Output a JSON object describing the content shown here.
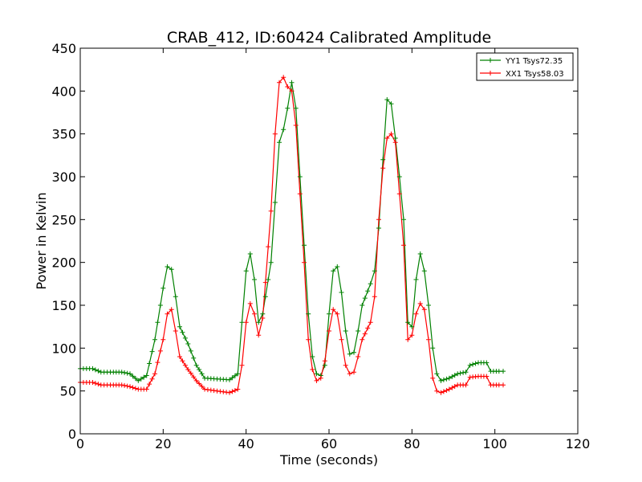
{
  "chart_data": {
    "type": "line",
    "title": "CRAB_412, ID:60424 Calibrated Amplitude",
    "xlabel": "Time (seconds)",
    "ylabel": "Power in Kelvin",
    "xlim": [
      0,
      120
    ],
    "ylim": [
      0,
      450
    ],
    "xticks": [
      0,
      20,
      40,
      60,
      80,
      100,
      120
    ],
    "yticks": [
      0,
      50,
      100,
      150,
      200,
      250,
      300,
      350,
      400,
      450
    ],
    "grid": false,
    "legend_position": "top-right",
    "marker": "+",
    "series": [
      {
        "name": "YY1 Tsys72.35",
        "color": "#008000",
        "points": [
          [
            0,
            76
          ],
          [
            3,
            76
          ],
          [
            5,
            72
          ],
          [
            8,
            72
          ],
          [
            10,
            72
          ],
          [
            12,
            70
          ],
          [
            14,
            62
          ],
          [
            16,
            68
          ],
          [
            18,
            110
          ],
          [
            20,
            170
          ],
          [
            21,
            195
          ],
          [
            22,
            192
          ],
          [
            23,
            160
          ],
          [
            24,
            125
          ],
          [
            26,
            105
          ],
          [
            28,
            80
          ],
          [
            30,
            65
          ],
          [
            33,
            64
          ],
          [
            36,
            63
          ],
          [
            38,
            70
          ],
          [
            39,
            130
          ],
          [
            40,
            190
          ],
          [
            41,
            210
          ],
          [
            42,
            180
          ],
          [
            43,
            130
          ],
          [
            44,
            140
          ],
          [
            46,
            200
          ],
          [
            47,
            270
          ],
          [
            48,
            340
          ],
          [
            49,
            355
          ],
          [
            50,
            380
          ],
          [
            51,
            410
          ],
          [
            52,
            380
          ],
          [
            53,
            300
          ],
          [
            54,
            220
          ],
          [
            55,
            140
          ],
          [
            56,
            90
          ],
          [
            57,
            70
          ],
          [
            58,
            68
          ],
          [
            59,
            80
          ],
          [
            60,
            140
          ],
          [
            61,
            190
          ],
          [
            62,
            195
          ],
          [
            63,
            165
          ],
          [
            64,
            120
          ],
          [
            65,
            93
          ],
          [
            66,
            95
          ],
          [
            67,
            120
          ],
          [
            68,
            150
          ],
          [
            70,
            175
          ],
          [
            71,
            190
          ],
          [
            72,
            240
          ],
          [
            73,
            320
          ],
          [
            74,
            390
          ],
          [
            75,
            385
          ],
          [
            76,
            345
          ],
          [
            77,
            300
          ],
          [
            78,
            250
          ],
          [
            79,
            130
          ],
          [
            80,
            125
          ],
          [
            81,
            180
          ],
          [
            82,
            210
          ],
          [
            83,
            190
          ],
          [
            84,
            150
          ],
          [
            85,
            100
          ],
          [
            86,
            70
          ],
          [
            87,
            62
          ],
          [
            89,
            65
          ],
          [
            91,
            70
          ],
          [
            93,
            72
          ],
          [
            94,
            80
          ],
          [
            96,
            83
          ],
          [
            98,
            83
          ],
          [
            99,
            73
          ],
          [
            101,
            73
          ],
          [
            102,
            73
          ]
        ]
      },
      {
        "name": "XX1 Tsys58.03",
        "color": "#ff0000",
        "points": [
          [
            0,
            60
          ],
          [
            3,
            60
          ],
          [
            5,
            57
          ],
          [
            8,
            57
          ],
          [
            10,
            57
          ],
          [
            12,
            55
          ],
          [
            14,
            52
          ],
          [
            16,
            52
          ],
          [
            18,
            70
          ],
          [
            20,
            110
          ],
          [
            21,
            140
          ],
          [
            22,
            145
          ],
          [
            23,
            120
          ],
          [
            24,
            90
          ],
          [
            26,
            75
          ],
          [
            28,
            62
          ],
          [
            30,
            52
          ],
          [
            33,
            50
          ],
          [
            36,
            48
          ],
          [
            38,
            52
          ],
          [
            39,
            80
          ],
          [
            40,
            130
          ],
          [
            41,
            152
          ],
          [
            42,
            140
          ],
          [
            43,
            115
          ],
          [
            44,
            135
          ],
          [
            46,
            260
          ],
          [
            47,
            350
          ],
          [
            48,
            410
          ],
          [
            49,
            416
          ],
          [
            50,
            405
          ],
          [
            51,
            400
          ],
          [
            52,
            360
          ],
          [
            53,
            280
          ],
          [
            54,
            200
          ],
          [
            55,
            110
          ],
          [
            56,
            75
          ],
          [
            57,
            62
          ],
          [
            58,
            65
          ],
          [
            59,
            85
          ],
          [
            60,
            120
          ],
          [
            61,
            145
          ],
          [
            62,
            140
          ],
          [
            63,
            110
          ],
          [
            64,
            80
          ],
          [
            65,
            70
          ],
          [
            66,
            72
          ],
          [
            67,
            90
          ],
          [
            68,
            110
          ],
          [
            70,
            130
          ],
          [
            71,
            160
          ],
          [
            72,
            250
          ],
          [
            73,
            310
          ],
          [
            74,
            345
          ],
          [
            75,
            350
          ],
          [
            76,
            340
          ],
          [
            77,
            280
          ],
          [
            78,
            220
          ],
          [
            79,
            110
          ],
          [
            80,
            115
          ],
          [
            81,
            140
          ],
          [
            82,
            152
          ],
          [
            83,
            145
          ],
          [
            84,
            110
          ],
          [
            85,
            65
          ],
          [
            86,
            50
          ],
          [
            87,
            48
          ],
          [
            89,
            52
          ],
          [
            91,
            57
          ],
          [
            93,
            57
          ],
          [
            94,
            66
          ],
          [
            96,
            67
          ],
          [
            98,
            67
          ],
          [
            99,
            57
          ],
          [
            101,
            57
          ],
          [
            102,
            57
          ]
        ]
      }
    ]
  }
}
